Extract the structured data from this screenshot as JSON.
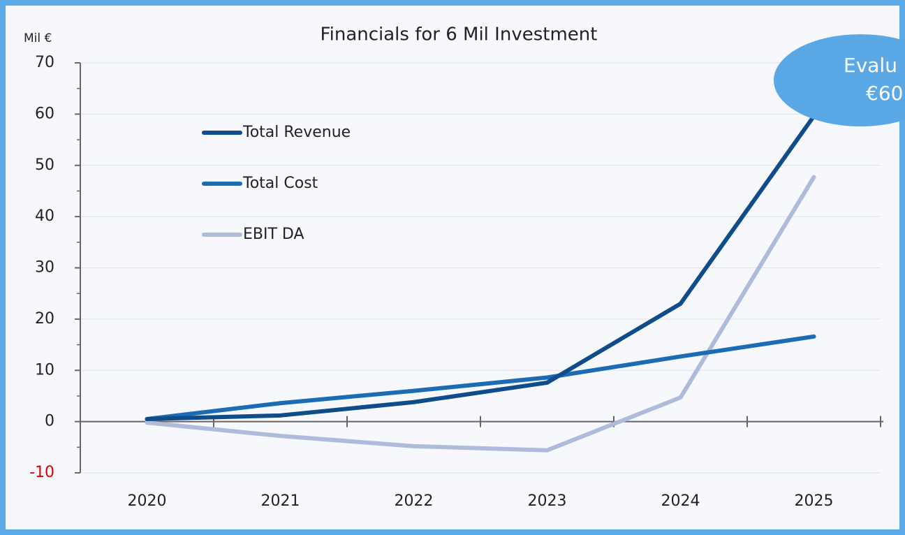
{
  "chart_data": {
    "type": "line",
    "title": "Financials for 6 Mil Investment",
    "y_label": "Mil €",
    "categories": [
      "2020",
      "2021",
      "2022",
      "2023",
      "2024",
      "2025"
    ],
    "series": [
      {
        "name": "Total Revenue",
        "color": "#0f4c8a",
        "values": [
          0.5,
          1.2,
          3.8,
          7.6,
          23,
          59.6
        ]
      },
      {
        "name": "Total Cost",
        "color": "#1b6cb4",
        "values": [
          0.5,
          3.6,
          6,
          8.6,
          12.7,
          16.6
        ]
      },
      {
        "name": "EBIT DA",
        "color": "#aebbdb",
        "values": [
          -0.2,
          -2.8,
          -4.8,
          -5.6,
          4.7,
          47.7
        ]
      }
    ],
    "ylim": [
      -10,
      70
    ],
    "yticks": [
      -10,
      0,
      10,
      20,
      30,
      40,
      50,
      60,
      70
    ],
    "negative_tick_color": "#e00000",
    "grid": true,
    "annotation": {
      "lines": [
        "Evalu",
        "€60"
      ],
      "color": "#5aa9e6"
    }
  }
}
